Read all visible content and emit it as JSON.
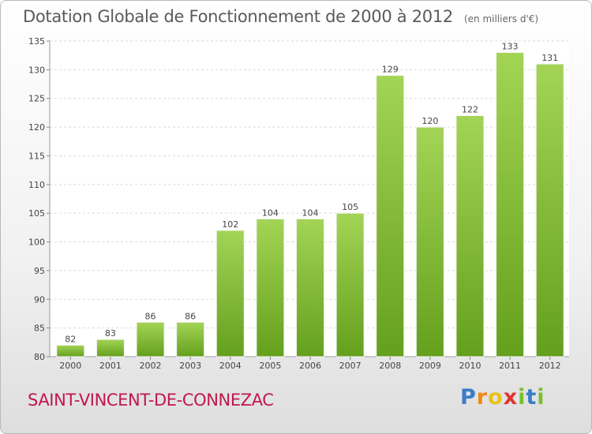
{
  "header": {
    "title": "Dotation Globale de Fonctionnement de 2000 à 2012",
    "subtitle": "(en milliers d'€)"
  },
  "footer": {
    "commune": "SAINT-VINCENT-DE-CONNEZAC",
    "logo_letters": [
      "P",
      "r",
      "o",
      "x",
      "i",
      "t",
      "i"
    ]
  },
  "colors": {
    "bar_top": "#a3d455",
    "bar_bottom": "#64a01d",
    "commune_text": "#c0174c",
    "logo": [
      "#3a7cc7",
      "#f08a14",
      "#e8c21c",
      "#e0332f",
      "#7bbf2a",
      "#3a7cc7",
      "#7bbf2a"
    ]
  },
  "chart_data": {
    "type": "bar",
    "categories": [
      "2000",
      "2001",
      "2002",
      "2003",
      "2004",
      "2005",
      "2006",
      "2007",
      "2008",
      "2009",
      "2010",
      "2011",
      "2012"
    ],
    "values": [
      82,
      83,
      86,
      86,
      102,
      104,
      104,
      105,
      129,
      120,
      122,
      133,
      131
    ],
    "title": "Dotation Globale de Fonctionnement de 2000 à 2012",
    "subtitle": "(en milliers d'€)",
    "ylim": [
      80,
      135
    ],
    "yticks": [
      80,
      85,
      90,
      95,
      100,
      105,
      110,
      115,
      120,
      125,
      130,
      135
    ],
    "grid": true,
    "data_labels": true
  }
}
